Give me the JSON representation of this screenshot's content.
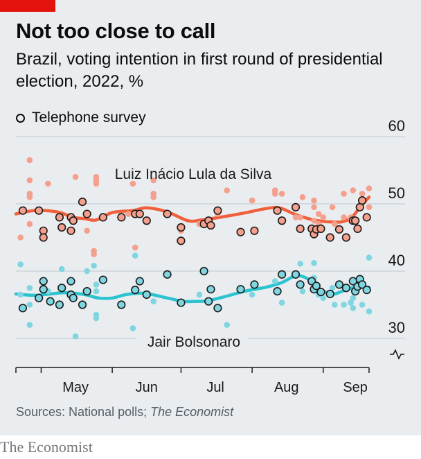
{
  "header": {
    "title": "Not too close to call",
    "subtitle": "Brazil, voting intention in first round of presidential election, 2022, %"
  },
  "legend": {
    "marker_label": "Telephone survey"
  },
  "footer": {
    "source_prefix": "Sources: National polls; ",
    "source_italic": "The Economist",
    "brand": "The Economist"
  },
  "colors": {
    "lula": "#f1603c",
    "lula_dots": "#f4a08d",
    "bolsonaro": "#2cc3d1",
    "bolsonaro_dots": "#7fd6e0",
    "background": "#e9edf0"
  },
  "chart_data": {
    "type": "scatter",
    "x_scale": "days from 20 April to 21 September 2022",
    "xlim": [
      "2022-04-20",
      "2022-09-21"
    ],
    "ylim": [
      30,
      60
    ],
    "yticks": [
      30,
      40,
      50,
      60
    ],
    "y_axis_break": true,
    "grid": true,
    "month_labels": [
      {
        "label": "May",
        "date": "2022-05-16"
      },
      {
        "label": "Jun",
        "date": "2022-06-16"
      },
      {
        "label": "Jul",
        "date": "2022-07-16"
      },
      {
        "label": "Aug",
        "date": "2022-08-16"
      },
      {
        "label": "Sep",
        "date": "2022-09-15"
      }
    ],
    "month_boundaries": [
      "2022-05-01",
      "2022-06-01",
      "2022-07-01",
      "2022-08-01",
      "2022-09-01"
    ],
    "series": [
      {
        "name": "Luiz Inácio Lula da Silva",
        "trend": [
          [
            "2022-04-20",
            48.5
          ],
          [
            "2022-04-28",
            49.0
          ],
          [
            "2022-05-08",
            48.8
          ],
          [
            "2022-05-15",
            48.0
          ],
          [
            "2022-05-20",
            47.8
          ],
          [
            "2022-05-25",
            47.6
          ],
          [
            "2022-06-01",
            48.7
          ],
          [
            "2022-06-10",
            49.0
          ],
          [
            "2022-06-16",
            49.4
          ],
          [
            "2022-06-25",
            48.8
          ],
          [
            "2022-07-04",
            47.5
          ],
          [
            "2022-07-10",
            47.6
          ],
          [
            "2022-07-18",
            48.0
          ],
          [
            "2022-07-28",
            48.6
          ],
          [
            "2022-08-07",
            49.3
          ],
          [
            "2022-08-13",
            49.4
          ],
          [
            "2022-08-20",
            48.4
          ],
          [
            "2022-08-28",
            47.6
          ],
          [
            "2022-09-05",
            47.3
          ],
          [
            "2022-09-10",
            47.4
          ],
          [
            "2022-09-14",
            48.2
          ],
          [
            "2022-09-17",
            49.5
          ],
          [
            "2022-09-21",
            51.0
          ]
        ],
        "telephone": [
          [
            "2022-04-23",
            49
          ],
          [
            "2022-04-30",
            49
          ],
          [
            "2022-05-02",
            46
          ],
          [
            "2022-05-02",
            45
          ],
          [
            "2022-05-09",
            48
          ],
          [
            "2022-05-10",
            46.5
          ],
          [
            "2022-05-14",
            48
          ],
          [
            "2022-05-14",
            46
          ],
          [
            "2022-05-15",
            47.5
          ],
          [
            "2022-05-19",
            50.3
          ],
          [
            "2022-05-21",
            48.5
          ],
          [
            "2022-05-28",
            48
          ],
          [
            "2022-06-05",
            48
          ],
          [
            "2022-06-11",
            48.5
          ],
          [
            "2022-06-13",
            48.5
          ],
          [
            "2022-06-16",
            47.5
          ],
          [
            "2022-06-25",
            48.5
          ],
          [
            "2022-07-01",
            46.5
          ],
          [
            "2022-07-01",
            44.5
          ],
          [
            "2022-07-11",
            47
          ],
          [
            "2022-07-13",
            47.5
          ],
          [
            "2022-07-14",
            46.8
          ],
          [
            "2022-07-17",
            49
          ],
          [
            "2022-07-27",
            45.8
          ],
          [
            "2022-08-02",
            46
          ],
          [
            "2022-08-12",
            49
          ],
          [
            "2022-08-14",
            47.5
          ],
          [
            "2022-08-20",
            49.5
          ],
          [
            "2022-08-22",
            46.3
          ],
          [
            "2022-08-27",
            46.3
          ],
          [
            "2022-08-28",
            45.5
          ],
          [
            "2022-08-29",
            46.2
          ],
          [
            "2022-08-31",
            46.3
          ],
          [
            "2022-09-04",
            45
          ],
          [
            "2022-09-08",
            46.2
          ],
          [
            "2022-09-11",
            45
          ],
          [
            "2022-09-14",
            47.5
          ],
          [
            "2022-09-15",
            47.5
          ],
          [
            "2022-09-16",
            46.3
          ],
          [
            "2022-09-17",
            49.5
          ],
          [
            "2022-09-18",
            50.5
          ],
          [
            "2022-09-20",
            48
          ]
        ],
        "other": [
          [
            "2022-04-22",
            45
          ],
          [
            "2022-04-26",
            56.5
          ],
          [
            "2022-04-26",
            53.5
          ],
          [
            "2022-04-26",
            51.5
          ],
          [
            "2022-04-26",
            51
          ],
          [
            "2022-04-26",
            47
          ],
          [
            "2022-05-04",
            53
          ],
          [
            "2022-05-16",
            54
          ],
          [
            "2022-05-21",
            46
          ],
          [
            "2022-05-24",
            43
          ],
          [
            "2022-05-24",
            42.5
          ],
          [
            "2022-05-25",
            54
          ],
          [
            "2022-05-25",
            53.5
          ],
          [
            "2022-05-25",
            53
          ],
          [
            "2022-06-08",
            48.5
          ],
          [
            "2022-06-10",
            53
          ],
          [
            "2022-06-11",
            43.5
          ],
          [
            "2022-06-19",
            53.5
          ],
          [
            "2022-06-19",
            51.5
          ],
          [
            "2022-06-19",
            51
          ],
          [
            "2022-07-01",
            46
          ],
          [
            "2022-07-09",
            47
          ],
          [
            "2022-07-17",
            48.5
          ],
          [
            "2022-07-21",
            52
          ],
          [
            "2022-08-01",
            50.5
          ],
          [
            "2022-08-11",
            52
          ],
          [
            "2022-08-11",
            51.5
          ],
          [
            "2022-08-14",
            51.5
          ],
          [
            "2022-08-20",
            48
          ],
          [
            "2022-08-22",
            48
          ],
          [
            "2022-08-23",
            51
          ],
          [
            "2022-08-28",
            50.5
          ],
          [
            "2022-08-28",
            49.5
          ],
          [
            "2022-08-28",
            47.5
          ],
          [
            "2022-08-30",
            48.5
          ],
          [
            "2022-08-30",
            47
          ],
          [
            "2022-09-01",
            48
          ],
          [
            "2022-09-05",
            49.5
          ],
          [
            "2022-09-06",
            47
          ],
          [
            "2022-09-10",
            51.5
          ],
          [
            "2022-09-10",
            48
          ],
          [
            "2022-09-13",
            48
          ],
          [
            "2022-09-13",
            47.5
          ],
          [
            "2022-09-14",
            52
          ],
          [
            "2022-09-18",
            51.5
          ],
          [
            "2022-09-21",
            52.3
          ],
          [
            "2022-09-21",
            49.5
          ]
        ]
      },
      {
        "name": "Jair Bolsonaro",
        "trend": [
          [
            "2022-04-20",
            36.6
          ],
          [
            "2022-04-28",
            36.4
          ],
          [
            "2022-05-05",
            36.6
          ],
          [
            "2022-05-12",
            36.8
          ],
          [
            "2022-05-20",
            36.5
          ],
          [
            "2022-05-26",
            36.0
          ],
          [
            "2022-06-01",
            36.0
          ],
          [
            "2022-06-07",
            36.5
          ],
          [
            "2022-06-15",
            36.7
          ],
          [
            "2022-06-25",
            36.0
          ],
          [
            "2022-07-02",
            35.5
          ],
          [
            "2022-07-08",
            35.5
          ],
          [
            "2022-07-13",
            35.6
          ],
          [
            "2022-07-20",
            36.2
          ],
          [
            "2022-07-30",
            37.1
          ],
          [
            "2022-08-07",
            37.6
          ],
          [
            "2022-08-14",
            38.3
          ],
          [
            "2022-08-20",
            39.3
          ],
          [
            "2022-08-25",
            38.9
          ],
          [
            "2022-08-30",
            37.4
          ],
          [
            "2022-09-05",
            36.6
          ],
          [
            "2022-09-10",
            37.1
          ],
          [
            "2022-09-15",
            37.6
          ],
          [
            "2022-09-21",
            37.6
          ]
        ],
        "telephone": [
          [
            "2022-04-23",
            34.5
          ],
          [
            "2022-04-30",
            36
          ],
          [
            "2022-05-02",
            37.3
          ],
          [
            "2022-05-02",
            38.5
          ],
          [
            "2022-05-05",
            35.5
          ],
          [
            "2022-05-09",
            35
          ],
          [
            "2022-05-10",
            37.5
          ],
          [
            "2022-05-14",
            38.5
          ],
          [
            "2022-05-14",
            36.5
          ],
          [
            "2022-05-15",
            36
          ],
          [
            "2022-05-19",
            35
          ],
          [
            "2022-05-21",
            37
          ],
          [
            "2022-05-28",
            38.7
          ],
          [
            "2022-06-05",
            35
          ],
          [
            "2022-06-11",
            37.2
          ],
          [
            "2022-06-13",
            38.5
          ],
          [
            "2022-06-16",
            36.5
          ],
          [
            "2022-06-25",
            39.5
          ],
          [
            "2022-07-01",
            35.3
          ],
          [
            "2022-07-11",
            40
          ],
          [
            "2022-07-13",
            35.5
          ],
          [
            "2022-07-14",
            37.3
          ],
          [
            "2022-07-17",
            34.5
          ],
          [
            "2022-07-27",
            37.3
          ],
          [
            "2022-08-02",
            38
          ],
          [
            "2022-08-12",
            37
          ],
          [
            "2022-08-14",
            39.5
          ],
          [
            "2022-08-20",
            39.5
          ],
          [
            "2022-08-22",
            38
          ],
          [
            "2022-08-27",
            38.5
          ],
          [
            "2022-08-28",
            37.3
          ],
          [
            "2022-08-29",
            37.8
          ],
          [
            "2022-08-31",
            36.9
          ],
          [
            "2022-09-04",
            36.6
          ],
          [
            "2022-09-08",
            38
          ],
          [
            "2022-09-11",
            37.5
          ],
          [
            "2022-09-14",
            38.5
          ],
          [
            "2022-09-15",
            37
          ],
          [
            "2022-09-16",
            37.7
          ],
          [
            "2022-09-17",
            38.8
          ],
          [
            "2022-09-18",
            38
          ],
          [
            "2022-09-20",
            37.2
          ]
        ],
        "other": [
          [
            "2022-04-22",
            41
          ],
          [
            "2022-04-22",
            36.5
          ],
          [
            "2022-04-26",
            37.5
          ],
          [
            "2022-04-26",
            35
          ],
          [
            "2022-04-26",
            32
          ],
          [
            "2022-05-04",
            37
          ],
          [
            "2022-05-10",
            40.3
          ],
          [
            "2022-05-16",
            30.3
          ],
          [
            "2022-05-21",
            40
          ],
          [
            "2022-05-24",
            40.8
          ],
          [
            "2022-05-25",
            38
          ],
          [
            "2022-05-25",
            37
          ],
          [
            "2022-05-25",
            33.5
          ],
          [
            "2022-05-25",
            33
          ],
          [
            "2022-06-10",
            31.5
          ],
          [
            "2022-06-11",
            42.3
          ],
          [
            "2022-06-19",
            35.5
          ],
          [
            "2022-07-09",
            36.5
          ],
          [
            "2022-07-21",
            32
          ],
          [
            "2022-08-01",
            36.5
          ],
          [
            "2022-08-11",
            38.5
          ],
          [
            "2022-08-14",
            35.3
          ],
          [
            "2022-08-22",
            41.1
          ],
          [
            "2022-08-23",
            37
          ],
          [
            "2022-08-28",
            39
          ],
          [
            "2022-08-28",
            41.2
          ],
          [
            "2022-08-30",
            36.5
          ],
          [
            "2022-09-01",
            36
          ],
          [
            "2022-09-05",
            37.5
          ],
          [
            "2022-09-06",
            35
          ],
          [
            "2022-09-10",
            35
          ],
          [
            "2022-09-13",
            35.3
          ],
          [
            "2022-09-14",
            36
          ],
          [
            "2022-09-14",
            34.5
          ],
          [
            "2022-09-18",
            35
          ],
          [
            "2022-09-21",
            42
          ],
          [
            "2022-09-21",
            34
          ]
        ]
      }
    ]
  }
}
